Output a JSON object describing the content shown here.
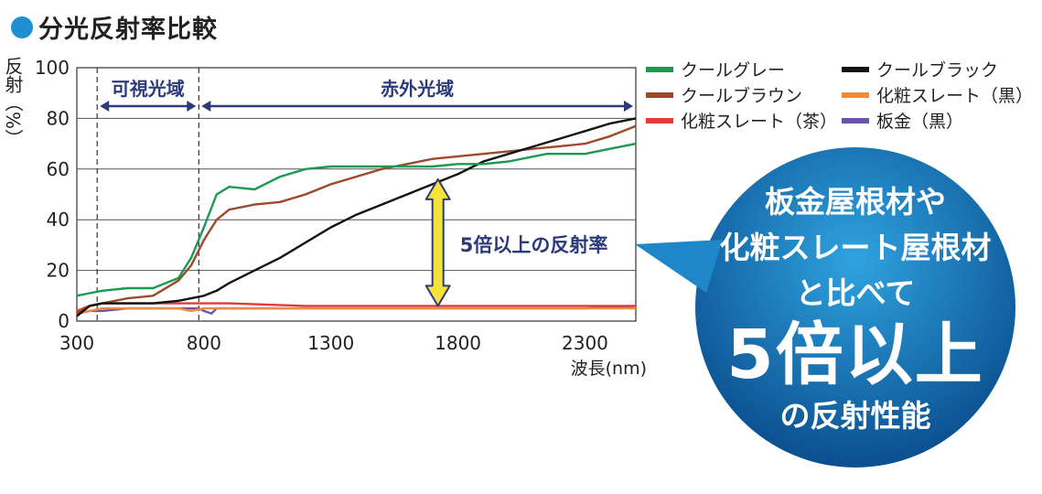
{
  "heading": {
    "title": "分光反射率比較",
    "accent": "#1e8fd0"
  },
  "chart_data": {
    "type": "line",
    "ylabel": "反射（%）",
    "xlabel": "波長(nm)",
    "xlim": [
      300,
      2500
    ],
    "ylim": [
      0,
      100
    ],
    "x_ticks": [
      300,
      800,
      1300,
      1800,
      2300
    ],
    "y_ticks": [
      0,
      20,
      40,
      60,
      80,
      100
    ],
    "grid": "horizontal",
    "legend_position": "top-right",
    "regions": [
      {
        "label": "可視光域",
        "from": 380,
        "to": 780
      },
      {
        "label": "赤外光域",
        "from": 780,
        "to": 2500
      }
    ],
    "annotation": {
      "text": "5倍以上の反射率",
      "x": 1750,
      "from": 6,
      "to": 56
    },
    "series": [
      {
        "name": "クールグレー",
        "color": "#1a9a50",
        "x": [
          300,
          350,
          400,
          500,
          600,
          700,
          750,
          800,
          850,
          900,
          1000,
          1100,
          1200,
          1300,
          1400,
          1500,
          1600,
          1700,
          1800,
          1900,
          2000,
          2100,
          2150,
          2200,
          2300,
          2400,
          2500
        ],
        "y": [
          10,
          11,
          12,
          13,
          13,
          17,
          25,
          37,
          50,
          53,
          52,
          57,
          60,
          61,
          61,
          61,
          61,
          61,
          62,
          62,
          63,
          65,
          66,
          66,
          66,
          68,
          70
        ]
      },
      {
        "name": "クールブラック",
        "color": "#111111",
        "x": [
          300,
          350,
          400,
          500,
          600,
          700,
          800,
          850,
          900,
          1000,
          1100,
          1200,
          1300,
          1400,
          1500,
          1600,
          1700,
          1800,
          1900,
          2000,
          2100,
          2200,
          2300,
          2400,
          2500
        ],
        "y": [
          2,
          6,
          7,
          7,
          7,
          8,
          10,
          12,
          15,
          20,
          25,
          31,
          37,
          42,
          46,
          50,
          54,
          58,
          63,
          66,
          69,
          72,
          75,
          78,
          80
        ]
      },
      {
        "name": "クールブラウン",
        "color": "#9c4a2a",
        "x": [
          300,
          350,
          400,
          500,
          600,
          700,
          750,
          800,
          850,
          900,
          1000,
          1100,
          1200,
          1300,
          1400,
          1500,
          1600,
          1700,
          1800,
          1900,
          2000,
          2100,
          2200,
          2300,
          2400,
          2500
        ],
        "y": [
          3,
          6,
          7,
          9,
          10,
          16,
          22,
          32,
          40,
          44,
          46,
          47,
          50,
          54,
          57,
          60,
          62,
          64,
          65,
          66,
          67,
          68,
          69,
          70,
          73,
          77
        ]
      },
      {
        "name": "化粧スレート（黒）",
        "color": "#f08a3c",
        "x": [
          300,
          350,
          400,
          500,
          600,
          700,
          750,
          800,
          900,
          1200,
          1500,
          1800,
          2100,
          2500
        ],
        "y": [
          3,
          4,
          5,
          5,
          5,
          5,
          4,
          5,
          5,
          5,
          5,
          5,
          5,
          5
        ]
      },
      {
        "name": "化粧スレート（茶）",
        "color": "#e63a3a",
        "x": [
          300,
          350,
          400,
          500,
          600,
          700,
          750,
          800,
          900,
          1200,
          1500,
          1800,
          2100,
          2500
        ],
        "y": [
          4,
          6,
          7,
          7,
          7,
          7,
          7,
          7,
          7,
          6,
          6,
          6,
          6,
          6
        ]
      },
      {
        "name": "板金（黒）",
        "color": "#6a55a8",
        "x": [
          300,
          350,
          400,
          500,
          600,
          700,
          780,
          800,
          830,
          850,
          900,
          1200,
          1500,
          1800,
          2100,
          2300,
          2500
        ],
        "y": [
          3,
          4,
          4,
          5,
          5,
          5,
          5,
          4,
          3,
          5,
          5,
          5,
          5,
          5,
          5,
          5,
          6
        ]
      }
    ]
  },
  "legend": [
    {
      "name": "クールグレー",
      "color": "#1a9a50"
    },
    {
      "name": "クールブラック",
      "color": "#111111"
    },
    {
      "name": "クールブラウン",
      "color": "#9c4a2a"
    },
    {
      "name": "化粧スレート（黒）",
      "color": "#f08a3c"
    },
    {
      "name": "化粧スレート（茶）",
      "color": "#e63a3a"
    },
    {
      "name": "板金（黒）",
      "color": "#6a55a8"
    }
  ],
  "callout": {
    "line1": "板金屋根材や",
    "line2": "化粧スレート屋根材",
    "line3": "と比べて",
    "big": "5倍以上",
    "line5": "の反射性能",
    "color_top": "#2a9ad8",
    "color_bottom": "#0a4e8e"
  }
}
